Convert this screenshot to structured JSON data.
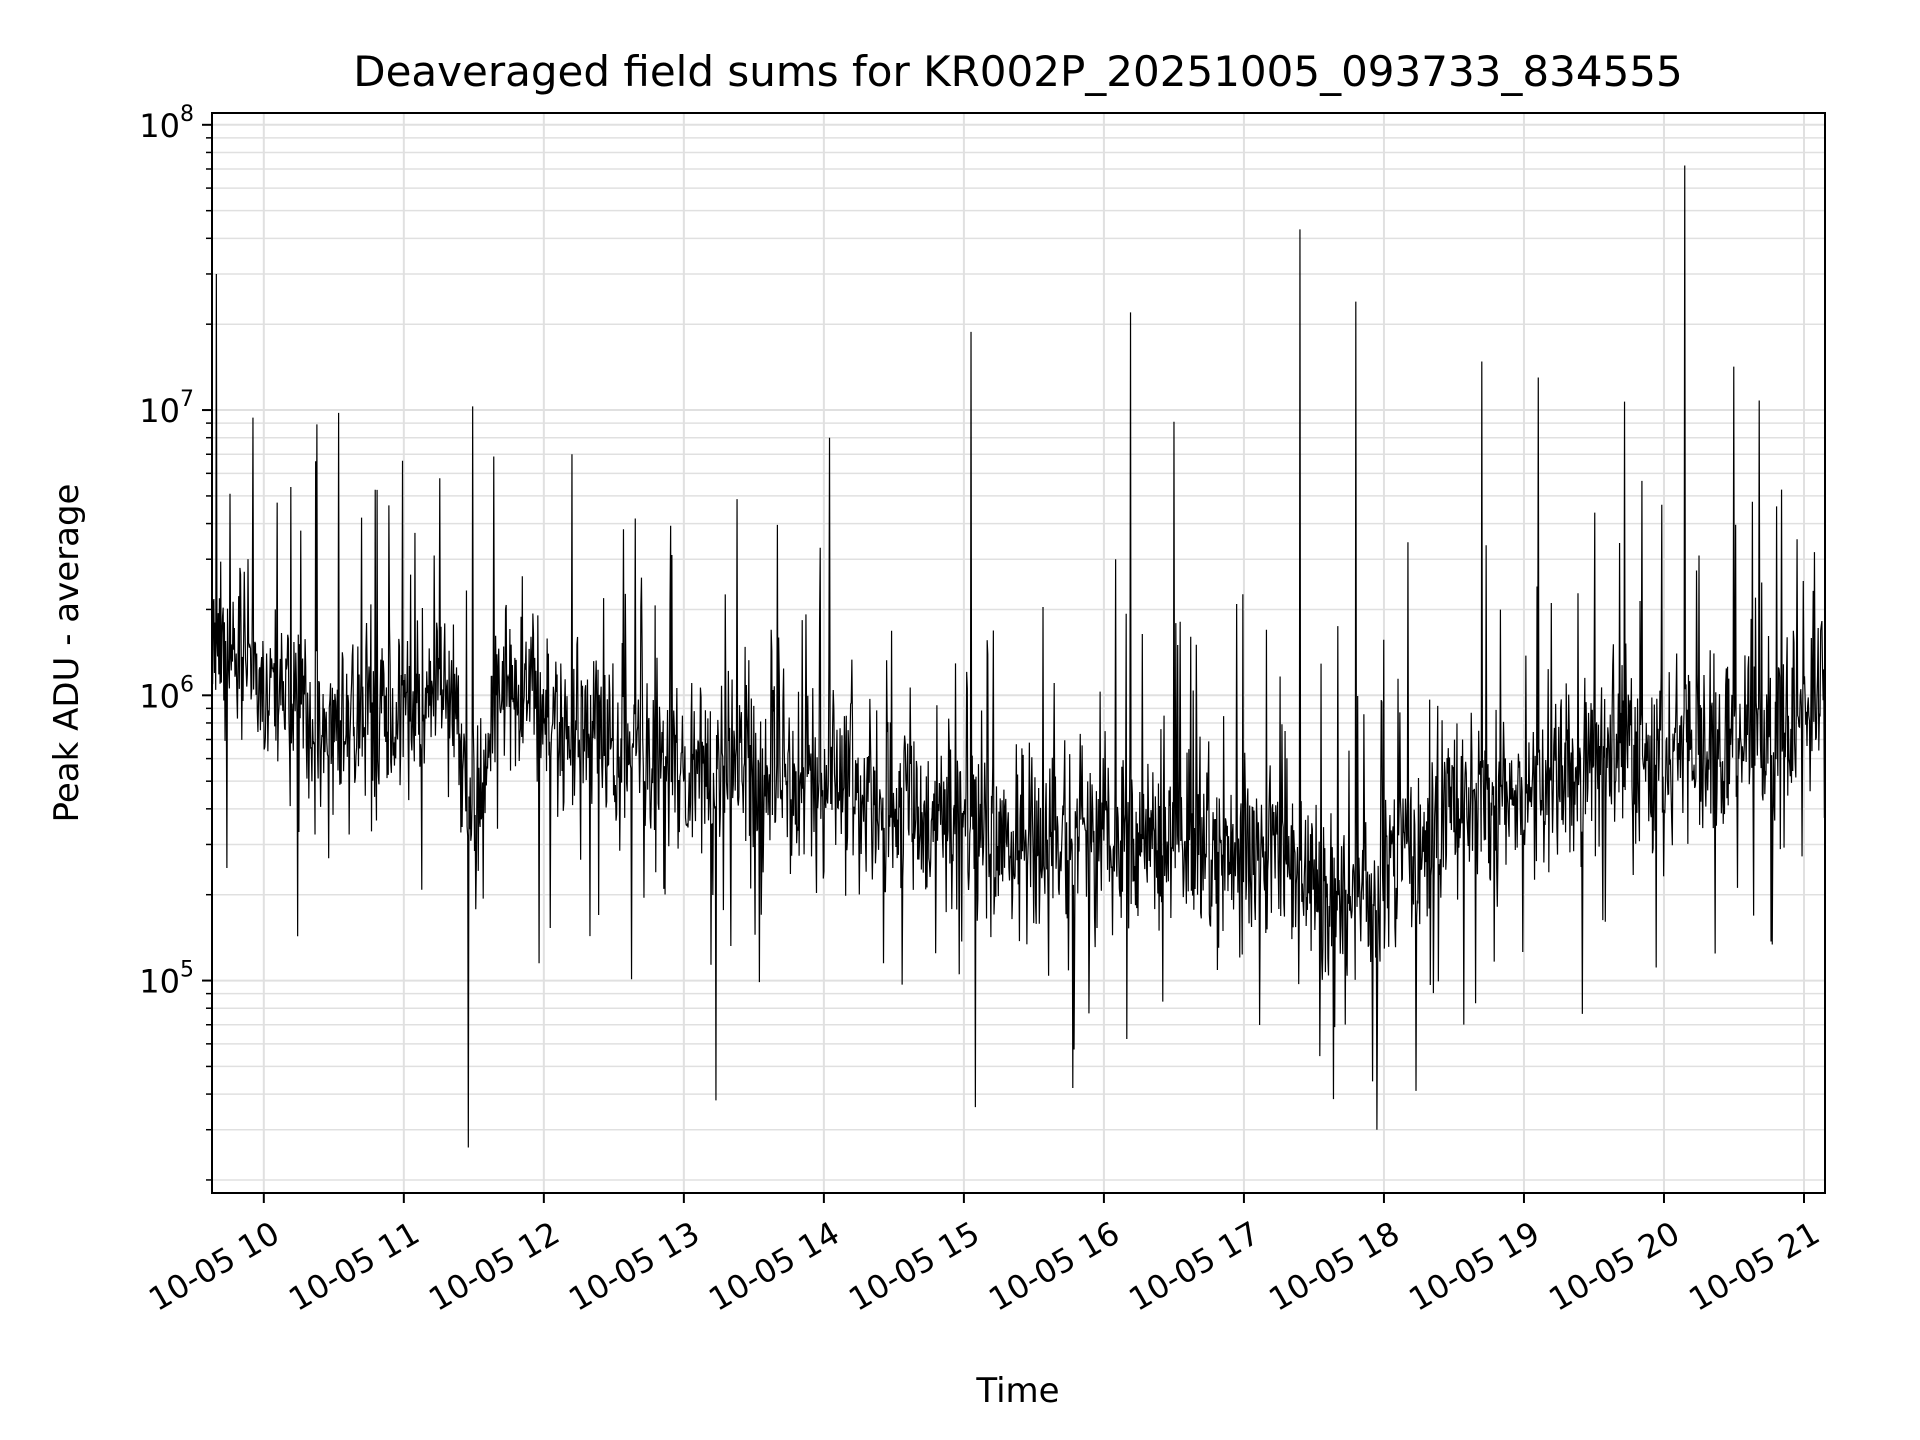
{
  "chart_data": {
    "type": "line",
    "title": "Deaveraged field sums for KR002P_20251005_093733_834555",
    "xlabel": "Time",
    "ylabel": "Peak ADU - average",
    "yscale": "log",
    "ylim": [
      18000,
      110000000
    ],
    "xlim_hours": [
      9.63,
      21.15
    ],
    "grid": true,
    "line_color": "#000000",
    "grid_color": "#e0e0e0",
    "x_ticks": [
      {
        "hour": 10,
        "label": "10-05 10"
      },
      {
        "hour": 11,
        "label": "10-05 11"
      },
      {
        "hour": 12,
        "label": "10-05 12"
      },
      {
        "hour": 13,
        "label": "10-05 13"
      },
      {
        "hour": 14,
        "label": "10-05 14"
      },
      {
        "hour": 15,
        "label": "10-05 15"
      },
      {
        "hour": 16,
        "label": "10-05 16"
      },
      {
        "hour": 17,
        "label": "10-05 17"
      },
      {
        "hour": 18,
        "label": "10-05 18"
      },
      {
        "hour": 19,
        "label": "10-05 19"
      },
      {
        "hour": 20,
        "label": "10-05 20"
      },
      {
        "hour": 21,
        "label": "10-05 21"
      }
    ],
    "y_ticks": [
      {
        "exp": 5,
        "base": "10",
        "sup": "5"
      },
      {
        "exp": 6,
        "base": "10",
        "sup": "6"
      },
      {
        "exp": 7,
        "base": "10",
        "sup": "7"
      },
      {
        "exp": 8,
        "base": "10",
        "sup": "8"
      }
    ],
    "baseline_profile": [
      {
        "hour": 9.63,
        "value": 1500000
      },
      {
        "hour": 10.0,
        "value": 1100000
      },
      {
        "hour": 10.5,
        "value": 800000
      },
      {
        "hour": 11.0,
        "value": 900000
      },
      {
        "hour": 11.3,
        "value": 1100000
      },
      {
        "hour": 11.5,
        "value": 350000
      },
      {
        "hour": 11.7,
        "value": 1200000
      },
      {
        "hour": 12.0,
        "value": 900000
      },
      {
        "hour": 12.5,
        "value": 650000
      },
      {
        "hour": 13.0,
        "value": 550000
      },
      {
        "hour": 14.0,
        "value": 500000
      },
      {
        "hour": 15.0,
        "value": 380000
      },
      {
        "hour": 15.5,
        "value": 300000
      },
      {
        "hour": 16.0,
        "value": 320000
      },
      {
        "hour": 17.0,
        "value": 300000
      },
      {
        "hour": 17.9,
        "value": 180000
      },
      {
        "hour": 18.5,
        "value": 400000
      },
      {
        "hour": 19.0,
        "value": 450000
      },
      {
        "hour": 19.5,
        "value": 650000
      },
      {
        "hour": 20.0,
        "value": 650000
      },
      {
        "hour": 20.9,
        "value": 700000
      },
      {
        "hour": 21.15,
        "value": 1400000
      }
    ],
    "spikes": [
      {
        "hour": 9.66,
        "value": 30000000
      },
      {
        "hour": 11.49,
        "value": 10300000
      },
      {
        "hour": 11.46,
        "value": 26000
      },
      {
        "hour": 12.2,
        "value": 7000000
      },
      {
        "hour": 13.23,
        "value": 38000
      },
      {
        "hour": 14.04,
        "value": 8000000
      },
      {
        "hour": 15.05,
        "value": 18800000
      },
      {
        "hour": 15.08,
        "value": 36000
      },
      {
        "hour": 15.78,
        "value": 42000
      },
      {
        "hour": 16.19,
        "value": 22000000
      },
      {
        "hour": 16.5,
        "value": 9100000
      },
      {
        "hour": 17.4,
        "value": 43000000
      },
      {
        "hour": 17.8,
        "value": 24000000
      },
      {
        "hour": 17.95,
        "value": 30000
      },
      {
        "hour": 18.7,
        "value": 14800000
      },
      {
        "hour": 19.1,
        "value": 13000000
      },
      {
        "hour": 19.72,
        "value": 10700000
      },
      {
        "hour": 20.15,
        "value": 72000000
      },
      {
        "hour": 20.5,
        "value": 14200000
      },
      {
        "hour": 20.68,
        "value": 10800000
      }
    ]
  }
}
